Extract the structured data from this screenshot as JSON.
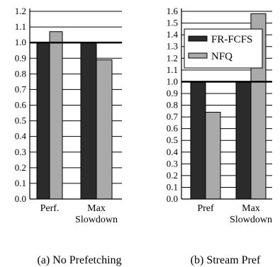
{
  "colors": {
    "fr_fcfs": "#2b2b2b",
    "nfq": "#aaaaaa",
    "axis": "#000000",
    "grid": "#000000"
  },
  "legend": {
    "placement": "upper-right of panel (b)",
    "items": [
      "FR-FCFS",
      "NFQ"
    ]
  },
  "chart_data": [
    {
      "type": "bar",
      "title": "",
      "caption": "(a)  No Prefetching",
      "categories": [
        [
          "Perf."
        ],
        [
          "Max",
          "Slowdown"
        ]
      ],
      "series": [
        {
          "name": "FR-FCFS",
          "values": [
            1.0,
            1.0
          ]
        },
        {
          "name": "NFQ",
          "values": [
            1.07,
            0.89
          ]
        }
      ],
      "ylim": [
        0,
        1.2
      ],
      "yticks": [
        "0.0",
        "0.1",
        "0.2",
        "0.3",
        "0.4",
        "0.5",
        "0.6",
        "0.7",
        "0.8",
        "0.9",
        "1.0",
        "1.1",
        "1.2"
      ],
      "reference_line": 1.0,
      "grid": true
    },
    {
      "type": "bar",
      "title": "",
      "caption": "(b)  Stream Pref",
      "categories": [
        [
          "Pref"
        ],
        [
          "Max",
          "Slowdown"
        ]
      ],
      "series": [
        {
          "name": "FR-FCFS",
          "values": [
            1.0,
            1.0
          ]
        },
        {
          "name": "NFQ",
          "values": [
            0.74,
            1.58
          ]
        }
      ],
      "ylim": [
        0,
        1.6
      ],
      "yticks": [
        "0.0",
        "0.1",
        "0.2",
        "0.3",
        "0.4",
        "0.5",
        "0.6",
        "0.7",
        "0.8",
        "0.9",
        "1.0",
        "1.1",
        "1.2",
        "1.3",
        "1.4",
        "1.5",
        "1.6"
      ],
      "reference_line": 1.0,
      "grid": true
    }
  ]
}
